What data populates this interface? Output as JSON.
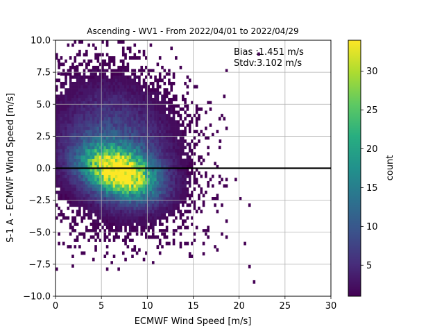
{
  "chart_data": {
    "type": "heatmap",
    "title": "Ascending - WV1 - From 2022/04/01 to 2022/04/29",
    "xlabel": "ECMWF Wind Speed [m/s]",
    "ylabel": "S-1 A - ECMWF Wind Speed [m/s]",
    "xlim": [
      0,
      30
    ],
    "ylim": [
      -10,
      10
    ],
    "xticks": [
      0,
      5,
      10,
      15,
      20,
      25,
      30
    ],
    "xtick_labels": [
      "0",
      "5",
      "10",
      "15",
      "20",
      "25",
      "30"
    ],
    "yticks": [
      -10,
      -7.5,
      -5,
      -2.5,
      0,
      2.5,
      5,
      7.5,
      10
    ],
    "ytick_labels": [
      "−10.0",
      "−7.5",
      "−5.0",
      "−2.5",
      "0.0",
      "2.5",
      "5.0",
      "7.5",
      "10.0"
    ],
    "grid": true,
    "reference_line_y": 0,
    "annotations": [
      "Bias :1.451 m/s",
      "Stdv:3.102 m/s"
    ],
    "colorbar": {
      "label": "count",
      "colormap": "viridis",
      "range": [
        1,
        34
      ],
      "ticks": [
        5,
        10,
        15,
        20,
        25,
        30
      ],
      "tick_labels": [
        "5",
        "10",
        "15",
        "20",
        "25",
        "30"
      ]
    },
    "bin_width_x": 0.25,
    "bin_width_y": 0.25,
    "density_peak": {
      "x": 7,
      "y": -0.3,
      "count": 34
    },
    "outlier_bins": [
      {
        "x": 22,
        "y": 8.8,
        "count": 1
      },
      {
        "x": 21.5,
        "y": -9,
        "count": 1
      },
      {
        "x": 21,
        "y": -7.8,
        "count": 1
      },
      {
        "x": 21,
        "y": -3,
        "count": 1
      },
      {
        "x": 20.5,
        "y": -6,
        "count": 1
      },
      {
        "x": 20,
        "y": -2.5,
        "count": 1
      },
      {
        "x": 19.5,
        "y": -1,
        "count": 1
      },
      {
        "x": 17.5,
        "y": -6.5,
        "count": 1
      },
      {
        "x": 16,
        "y": -6.8,
        "count": 1
      },
      {
        "x": 14.5,
        "y": -6.8,
        "count": 1
      },
      {
        "x": 12,
        "y": -6,
        "count": 1
      },
      {
        "x": 11,
        "y": -6.3,
        "count": 1
      },
      {
        "x": 0.2,
        "y": 8.3,
        "count": 1
      },
      {
        "x": 0.2,
        "y": 7.3,
        "count": 1
      },
      {
        "x": 2.2,
        "y": 7.8,
        "count": 1
      },
      {
        "x": 3.5,
        "y": 9.5,
        "count": 1
      },
      {
        "x": 18.5,
        "y": 7.5,
        "count": 1
      },
      {
        "x": 18,
        "y": 4,
        "count": 1
      },
      {
        "x": 17.8,
        "y": 2,
        "count": 1
      },
      {
        "x": 16.5,
        "y": 5,
        "count": 1
      }
    ]
  }
}
